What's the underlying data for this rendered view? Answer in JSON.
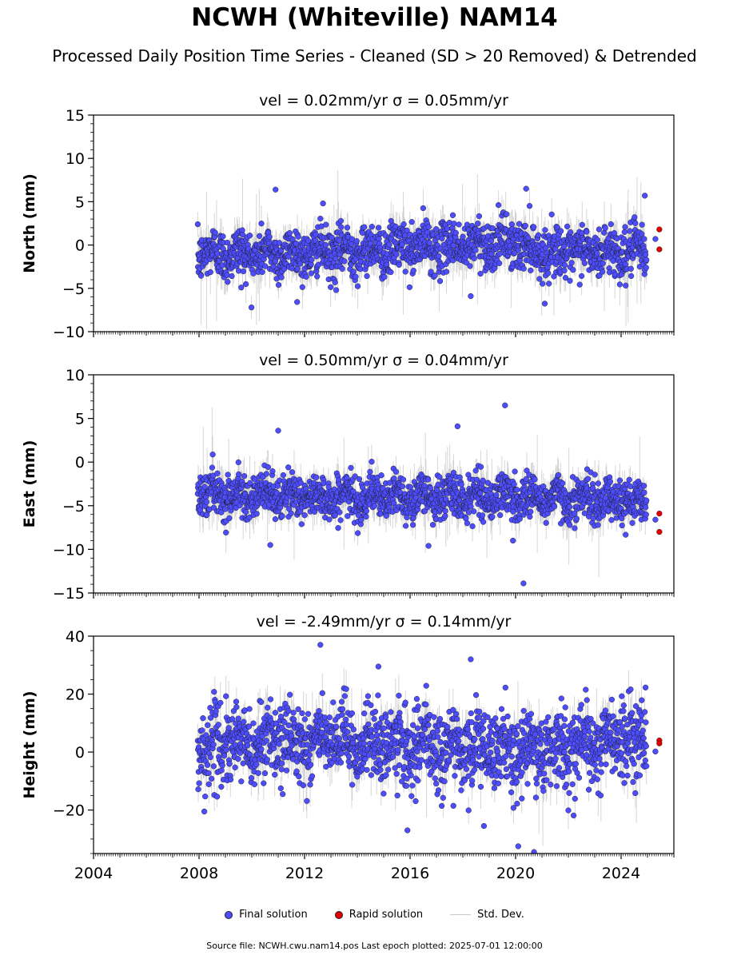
{
  "title": "NCWH (Whiteville) NAM14",
  "subtitle": "Processed Daily Position Time Series - Cleaned (SD > 20 Removed) & Detrended",
  "legend": {
    "final": "Final solution",
    "rapid": "Rapid solution",
    "stddev": "Std. Dev."
  },
  "footer": "Source file: NCWH.cwu.nam14.pos  Last epoch plotted: 2025-07-01 12:00:00",
  "colors": {
    "final": "#4d4dff",
    "rapid": "#e00000",
    "stddev": "#b4b4b4"
  },
  "chart_data": [
    {
      "type": "scatter",
      "component": "north",
      "title": "vel = 0.02mm/yr   σ = 0.05mm/yr",
      "ylabel": "North (mm)",
      "xlim": [
        2004.0,
        2026.0
      ],
      "ylim": [
        -10,
        15
      ],
      "yticks": [
        -10,
        -5,
        0,
        5,
        10,
        15
      ],
      "noise_sd": 1.4,
      "errbar": 1.8,
      "trend": [
        [
          2008.0,
          -1.0
        ],
        [
          2012.0,
          -1.0
        ],
        [
          2016.0,
          -0.3
        ],
        [
          2020.0,
          0.3
        ],
        [
          2021.0,
          -0.8
        ],
        [
          2025.0,
          -0.8
        ]
      ],
      "outliers": [
        [
          2010.9,
          6.4
        ],
        [
          2012.7,
          4.8
        ],
        [
          2018.3,
          -5.9
        ],
        [
          2020.4,
          6.5
        ],
        [
          2024.9,
          5.7
        ],
        [
          2013.2,
          -5.2
        ],
        [
          2009.6,
          -4.9
        ]
      ],
      "rapid": [
        [
          2025.45,
          1.8
        ],
        [
          2025.45,
          -0.5
        ]
      ],
      "final_tail": [
        [
          2025.3,
          0.7
        ]
      ]
    },
    {
      "type": "scatter",
      "component": "east",
      "title": "vel = 0.50mm/yr   σ = 0.04mm/yr",
      "ylabel": "East (mm)",
      "xlim": [
        2004.0,
        2026.0
      ],
      "ylim": [
        -15,
        10
      ],
      "yticks": [
        -15,
        -10,
        -5,
        0,
        5,
        10
      ],
      "noise_sd": 1.2,
      "errbar": 1.6,
      "trend": [
        [
          2008.0,
          -3.5
        ],
        [
          2012.0,
          -4.0
        ],
        [
          2016.0,
          -4.0
        ],
        [
          2020.0,
          -4.0
        ],
        [
          2025.0,
          -4.5
        ]
      ],
      "outliers": [
        [
          2011.0,
          3.6
        ],
        [
          2017.8,
          4.1
        ],
        [
          2019.6,
          6.5
        ],
        [
          2020.3,
          -13.9
        ],
        [
          2016.7,
          -9.6
        ],
        [
          2010.7,
          -9.5
        ],
        [
          2019.9,
          -9.0
        ]
      ],
      "rapid": [
        [
          2025.45,
          -5.9
        ],
        [
          2025.45,
          -8.0
        ]
      ],
      "final_tail": [
        [
          2025.3,
          -6.6
        ]
      ]
    },
    {
      "type": "scatter",
      "component": "height",
      "title": "vel = -2.49mm/yr   σ = 0.14mm/yr",
      "ylabel": "Height (mm)",
      "xlabel": "",
      "xlim": [
        2004.0,
        2026.0
      ],
      "ylim": [
        -35,
        40
      ],
      "yticks": [
        -20,
        0,
        20,
        40
      ],
      "xticks": [
        2004,
        2008,
        2012,
        2016,
        2020,
        2024
      ],
      "noise_sd": 6.5,
      "errbar": 5.5,
      "trend": [
        [
          2008.0,
          2.0
        ],
        [
          2012.0,
          4.0
        ],
        [
          2016.0,
          2.0
        ],
        [
          2020.0,
          0.0
        ],
        [
          2025.0,
          5.0
        ]
      ],
      "outliers": [
        [
          2012.6,
          37.0
        ],
        [
          2018.3,
          32.0
        ],
        [
          2020.1,
          -32.5
        ],
        [
          2020.7,
          -34.5
        ],
        [
          2015.9,
          -27.0
        ],
        [
          2018.8,
          -25.5
        ],
        [
          2008.2,
          -20.5
        ],
        [
          2014.8,
          29.5
        ]
      ],
      "rapid": [
        [
          2025.45,
          4.0
        ],
        [
          2025.45,
          3.0
        ]
      ],
      "final_tail": [
        [
          2025.3,
          0.2
        ]
      ]
    }
  ]
}
